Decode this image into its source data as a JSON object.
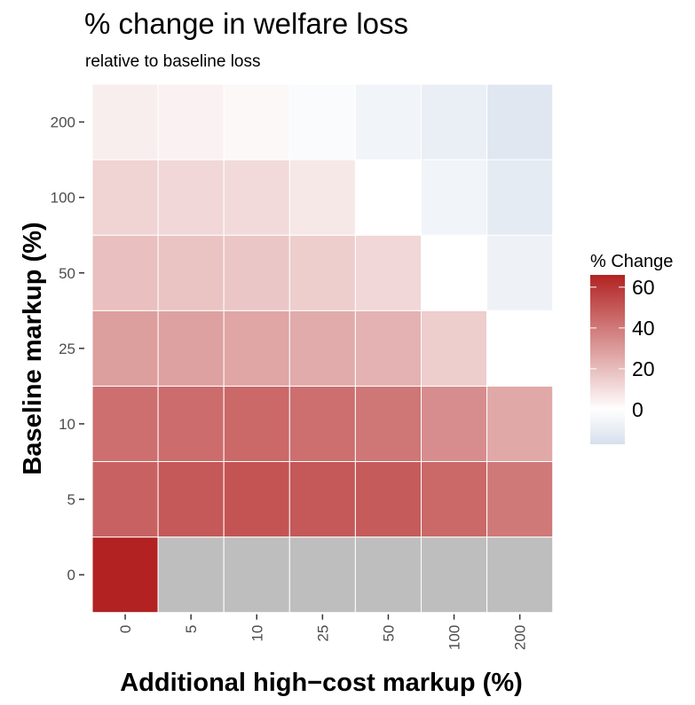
{
  "chart_data": {
    "type": "heatmap",
    "title": "% change in welfare loss",
    "subtitle": "relative to baseline loss",
    "xlabel": "Additional high−cost markup (%)",
    "ylabel": "Baseline markup (%)",
    "x_categories": [
      "0",
      "5",
      "10",
      "25",
      "50",
      "100",
      "200"
    ],
    "y_categories": [
      "0",
      "5",
      "10",
      "25",
      "50",
      "100",
      "200"
    ],
    "values": [
      [
        66,
        null,
        null,
        null,
        null,
        null,
        null
      ],
      [
        47,
        50,
        51,
        50,
        49,
        45,
        40
      ],
      [
        43,
        44,
        45,
        43,
        41,
        34,
        26
      ],
      [
        29,
        28,
        27,
        25,
        23,
        15,
        0
      ],
      [
        19,
        18,
        17,
        15,
        12,
        0,
        -7
      ],
      [
        13,
        12,
        11,
        7,
        0,
        -6,
        -11
      ],
      [
        5,
        4,
        2,
        -2,
        -6,
        -9,
        -13
      ]
    ],
    "missing_color": "#bebebe",
    "legend": {
      "title": "% Change",
      "ticks": [
        "0",
        "20",
        "40",
        "60"
      ],
      "range": [
        -17,
        66
      ],
      "position": "right"
    },
    "colors": {
      "low": "#d6e0ec",
      "mid": "#ffffff",
      "high": "#b22222"
    }
  }
}
